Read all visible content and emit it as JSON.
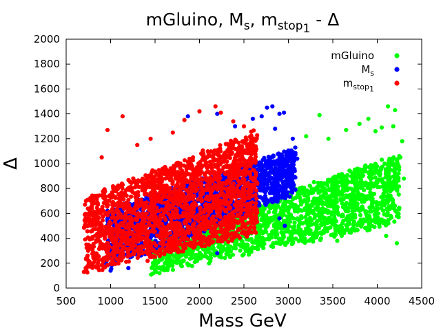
{
  "chart_data": {
    "type": "scatter",
    "title": {
      "base": "mGluino, M",
      "sub1": "s",
      "mid": ", m",
      "sub2": "stop",
      "sub3": "1",
      "tail": " - Δ"
    },
    "xlabel": "Mass GeV",
    "ylabel": "Δ",
    "xlim": [
      500,
      4500
    ],
    "ylim": [
      0,
      2000
    ],
    "xticks": [
      500,
      1000,
      1500,
      2000,
      2500,
      3000,
      3500,
      4000,
      4500
    ],
    "yticks": [
      0,
      200,
      400,
      600,
      800,
      1000,
      1200,
      1400,
      1600,
      1800,
      2000
    ],
    "legend_position": "top-right",
    "series": [
      {
        "name": "mGluino",
        "name_base": "mGluino",
        "name_sub": "",
        "name_sub2": "",
        "color": "#00ff00",
        "band": {
          "x_min": 1450,
          "x_max": 4250,
          "low_start": 120,
          "low_end": 520,
          "high_start": 380,
          "high_end": 1080,
          "point_count": 1800
        },
        "outliers": [
          [
            4120,
            1460
          ],
          [
            4200,
            1430
          ],
          [
            4280,
            1180
          ],
          [
            3350,
            1390
          ],
          [
            3900,
            1360
          ],
          [
            3800,
            1320
          ],
          [
            4180,
            1300
          ],
          [
            4300,
            880
          ],
          [
            3650,
            1270
          ],
          [
            3450,
            1200
          ],
          [
            3200,
            1220
          ],
          [
            4050,
            1290
          ],
          [
            3980,
            1260
          ],
          [
            1500,
            200
          ],
          [
            1600,
            160
          ],
          [
            1550,
            120
          ],
          [
            3550,
            380
          ],
          [
            4100,
            420
          ],
          [
            4220,
            360
          ],
          [
            4260,
            1050
          ]
        ]
      },
      {
        "name": "Ms",
        "name_base": "M",
        "name_sub": "s",
        "name_sub2": "",
        "color": "#0000ff",
        "band": {
          "x_min": 950,
          "x_max": 3080,
          "low_start": 140,
          "low_end": 760,
          "high_start": 620,
          "high_end": 1120,
          "point_count": 1800
        },
        "outliers": [
          [
            2760,
            1450
          ],
          [
            2820,
            1460
          ],
          [
            2900,
            1400
          ],
          [
            2950,
            1410
          ],
          [
            2600,
            1360
          ],
          [
            2700,
            1380
          ],
          [
            2850,
            1280
          ],
          [
            3050,
            1200
          ],
          [
            1870,
            1380
          ],
          [
            2200,
            1400
          ],
          [
            3100,
            1040
          ],
          [
            2400,
            1300
          ],
          [
            3000,
            1050
          ],
          [
            1200,
            160
          ],
          [
            2200,
            280
          ],
          [
            2900,
            560
          ],
          [
            2960,
            500
          ],
          [
            1000,
            140
          ]
        ]
      },
      {
        "name": "mstop1",
        "name_base": "m",
        "name_sub": "stop",
        "name_sub2": "1",
        "color": "#ff0000",
        "band": {
          "x_min": 700,
          "x_max": 2650,
          "low_start": 120,
          "low_end": 430,
          "high_start": 720,
          "high_end": 1260,
          "point_count": 2200
        },
        "outliers": [
          [
            965,
            1270
          ],
          [
            1135,
            1380
          ],
          [
            1450,
            1200
          ],
          [
            1700,
            1250
          ],
          [
            2000,
            1420
          ],
          [
            2180,
            1460
          ],
          [
            2240,
            1410
          ],
          [
            2500,
            1300
          ],
          [
            2600,
            1200
          ],
          [
            1830,
            1350
          ],
          [
            2380,
            1340
          ],
          [
            700,
            130
          ],
          [
            720,
            160
          ],
          [
            900,
            1050
          ],
          [
            1300,
            1150
          ]
        ]
      }
    ]
  }
}
